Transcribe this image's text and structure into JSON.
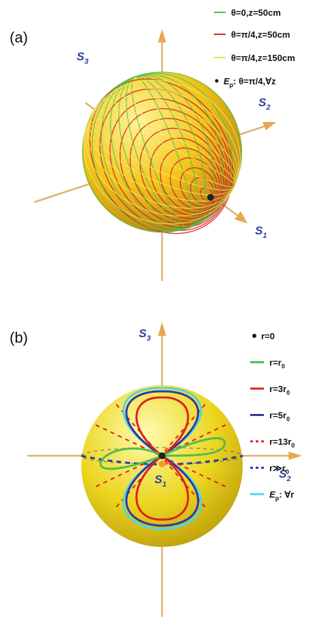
{
  "panel_a": {
    "label": "(a)",
    "axes": {
      "s3": {
        "main": "S",
        "sub": "3"
      },
      "s2": {
        "main": "S",
        "sub": "2"
      },
      "s1": {
        "main": "S",
        "sub": "1"
      }
    },
    "legend": [
      {
        "text": "θ=0,z=50cm"
      },
      {
        "text": "θ=π/4,z=50cm"
      },
      {
        "text": "θ=π/4,z=150cm"
      },
      {
        "main": "E",
        "sub": "p",
        "text": ": θ=π/4,∀z"
      }
    ]
  },
  "panel_b": {
    "label": "(b)",
    "axes": {
      "s3": {
        "main": "S",
        "sub": "3"
      },
      "s2": {
        "main": "S",
        "sub": "2"
      },
      "s1": {
        "main": "S",
        "sub": "1"
      }
    },
    "legend": [
      {
        "text": "r=0"
      },
      {
        "text": "r=r",
        "sub": "0"
      },
      {
        "text": "r=3r",
        "sub": "0"
      },
      {
        "text": "r=5r",
        "sub": "0"
      },
      {
        "text": "r=13r",
        "sub": "0"
      },
      {
        "text": "r≫r",
        "sub": "0"
      },
      {
        "main": "E",
        "sub": "p",
        "text": ": ∀r"
      }
    ]
  }
}
